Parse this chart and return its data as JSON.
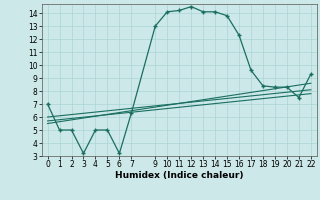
{
  "xlabel": "Humidex (Indice chaleur)",
  "bg_color": "#cce8e8",
  "grid_color": "#aad4d4",
  "line_color": "#1a6e60",
  "line1_x": [
    0,
    1,
    2,
    3,
    4,
    5,
    6,
    7,
    9,
    10,
    11,
    12,
    13,
    14,
    15,
    16,
    17,
    18,
    19,
    20,
    21,
    22
  ],
  "line1_y": [
    7.0,
    5.0,
    5.0,
    3.2,
    5.0,
    5.0,
    3.2,
    6.3,
    13.0,
    14.1,
    14.2,
    14.5,
    14.1,
    14.1,
    13.8,
    12.3,
    9.6,
    8.4,
    8.3,
    8.3,
    7.5,
    9.3
  ],
  "line2_x": [
    0,
    22
  ],
  "line2_y": [
    5.5,
    8.6
  ],
  "line3_x": [
    0,
    22
  ],
  "line3_y": [
    6.0,
    8.1
  ],
  "line4_x": [
    0,
    22
  ],
  "line4_y": [
    5.7,
    7.8
  ],
  "xlim": [
    -0.5,
    22.5
  ],
  "ylim": [
    3,
    14.7
  ],
  "yticks": [
    3,
    4,
    5,
    6,
    7,
    8,
    9,
    10,
    11,
    12,
    13,
    14
  ],
  "xticks": [
    0,
    1,
    2,
    3,
    4,
    5,
    6,
    7,
    9,
    10,
    11,
    12,
    13,
    14,
    15,
    16,
    17,
    18,
    19,
    20,
    21,
    22
  ],
  "tick_fontsize": 5.5,
  "xlabel_fontsize": 6.5
}
